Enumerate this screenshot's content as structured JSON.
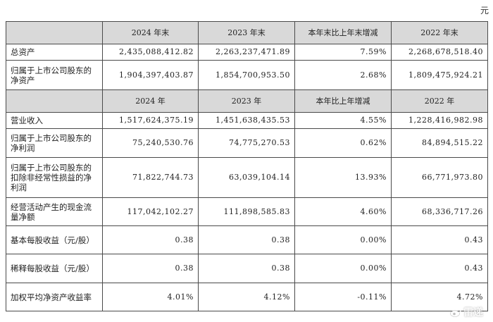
{
  "unit": "元",
  "header_assets": [
    "2024 年末",
    "2023 年末",
    "本年末比上年末增减",
    "2022 年末"
  ],
  "header_income": [
    "2024 年",
    "2023 年",
    "本年比上年增减",
    "2022 年"
  ],
  "rows_assets": [
    {
      "label": "总资产",
      "values": [
        "2,435,088,412.82",
        "2,263,237,471.89",
        "7.59%",
        "2,268,678,518.40"
      ]
    },
    {
      "label": "归属于上市公司股东的净资产",
      "values": [
        "1,904,397,403.87",
        "1,854,700,953.50",
        "2.68%",
        "1,809,475,924.21"
      ]
    }
  ],
  "rows_income": [
    {
      "label": "营业收入",
      "values": [
        "1,517,624,375.19",
        "1,451,638,435.53",
        "4.55%",
        "1,228,416,982.98"
      ]
    },
    {
      "label": "归属于上市公司股东的净利润",
      "values": [
        "75,240,530.76",
        "74,775,270.53",
        "0.62%",
        "84,894,515.22"
      ]
    },
    {
      "label": "归属于上市公司股东的扣除非经常性损益的净利润",
      "values": [
        "71,822,744.73",
        "63,039,104.14",
        "13.93%",
        "66,771,973.80"
      ]
    },
    {
      "label": "经营活动产生的现金流量净额",
      "values": [
        "117,042,102.27",
        "111,898,585.83",
        "4.60%",
        "68,336,717.26"
      ]
    },
    {
      "label": "基本每股收益（元/股）",
      "values": [
        "0.38",
        "0.38",
        "0.00%",
        "0.43"
      ]
    },
    {
      "label": "稀释每股收益（元/股）",
      "values": [
        "0.38",
        "0.38",
        "0.00%",
        "0.43"
      ]
    },
    {
      "label": "加权平均净资产收益率",
      "values": [
        "4.01%",
        "4.12%",
        "-0.11%",
        "4.72%"
      ]
    }
  ],
  "watermark": "雷递"
}
